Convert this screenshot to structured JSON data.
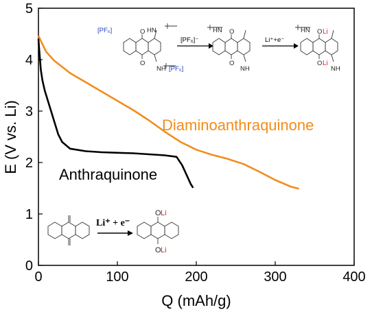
{
  "chart_data": {
    "type": "line",
    "xlabel": "Q (mAh/g)",
    "ylabel": "E (V vs. Li)",
    "xlim": [
      0,
      400
    ],
    "ylim": [
      0,
      5
    ],
    "x_ticks": [
      "0",
      "100",
      "200",
      "300",
      "400"
    ],
    "y_ticks": [
      "0",
      "1",
      "2",
      "3",
      "4",
      "5"
    ],
    "grid": false,
    "series": [
      {
        "name": "Diaminoanthraquinone",
        "color": "#f28c1a",
        "points": [
          [
            0,
            4.47
          ],
          [
            2,
            4.4
          ],
          [
            5,
            4.3
          ],
          [
            10,
            4.15
          ],
          [
            20,
            3.98
          ],
          [
            40,
            3.74
          ],
          [
            60,
            3.56
          ],
          [
            80,
            3.38
          ],
          [
            100,
            3.2
          ],
          [
            120,
            3.02
          ],
          [
            140,
            2.82
          ],
          [
            160,
            2.6
          ],
          [
            180,
            2.4
          ],
          [
            200,
            2.25
          ],
          [
            220,
            2.15
          ],
          [
            240,
            2.07
          ],
          [
            260,
            1.97
          ],
          [
            280,
            1.82
          ],
          [
            300,
            1.66
          ],
          [
            320,
            1.53
          ],
          [
            330,
            1.49
          ]
        ]
      },
      {
        "name": "Anthraquinone",
        "color": "#000000",
        "points": [
          [
            0,
            4.4
          ],
          [
            1,
            4.2
          ],
          [
            2,
            4.0
          ],
          [
            3,
            3.8
          ],
          [
            5,
            3.6
          ],
          [
            8,
            3.4
          ],
          [
            12,
            3.2
          ],
          [
            16,
            3.0
          ],
          [
            20,
            2.8
          ],
          [
            25,
            2.55
          ],
          [
            30,
            2.4
          ],
          [
            40,
            2.27
          ],
          [
            60,
            2.22
          ],
          [
            80,
            2.2
          ],
          [
            100,
            2.19
          ],
          [
            120,
            2.18
          ],
          [
            140,
            2.16
          ],
          [
            160,
            2.14
          ],
          [
            175,
            2.11
          ],
          [
            182,
            1.95
          ],
          [
            188,
            1.75
          ],
          [
            193,
            1.58
          ],
          [
            196,
            1.51
          ]
        ]
      }
    ],
    "annotations": {
      "ion_label": "[PF₆]⁻",
      "salt_label": "[PF₆]",
      "li_label": "Li",
      "li_reaction": "Li⁺ + e⁻",
      "li_reaction_small": "Li⁺+e⁻",
      "nh_label": "NH",
      "hn_label": "HN",
      "o_label": "O"
    }
  }
}
